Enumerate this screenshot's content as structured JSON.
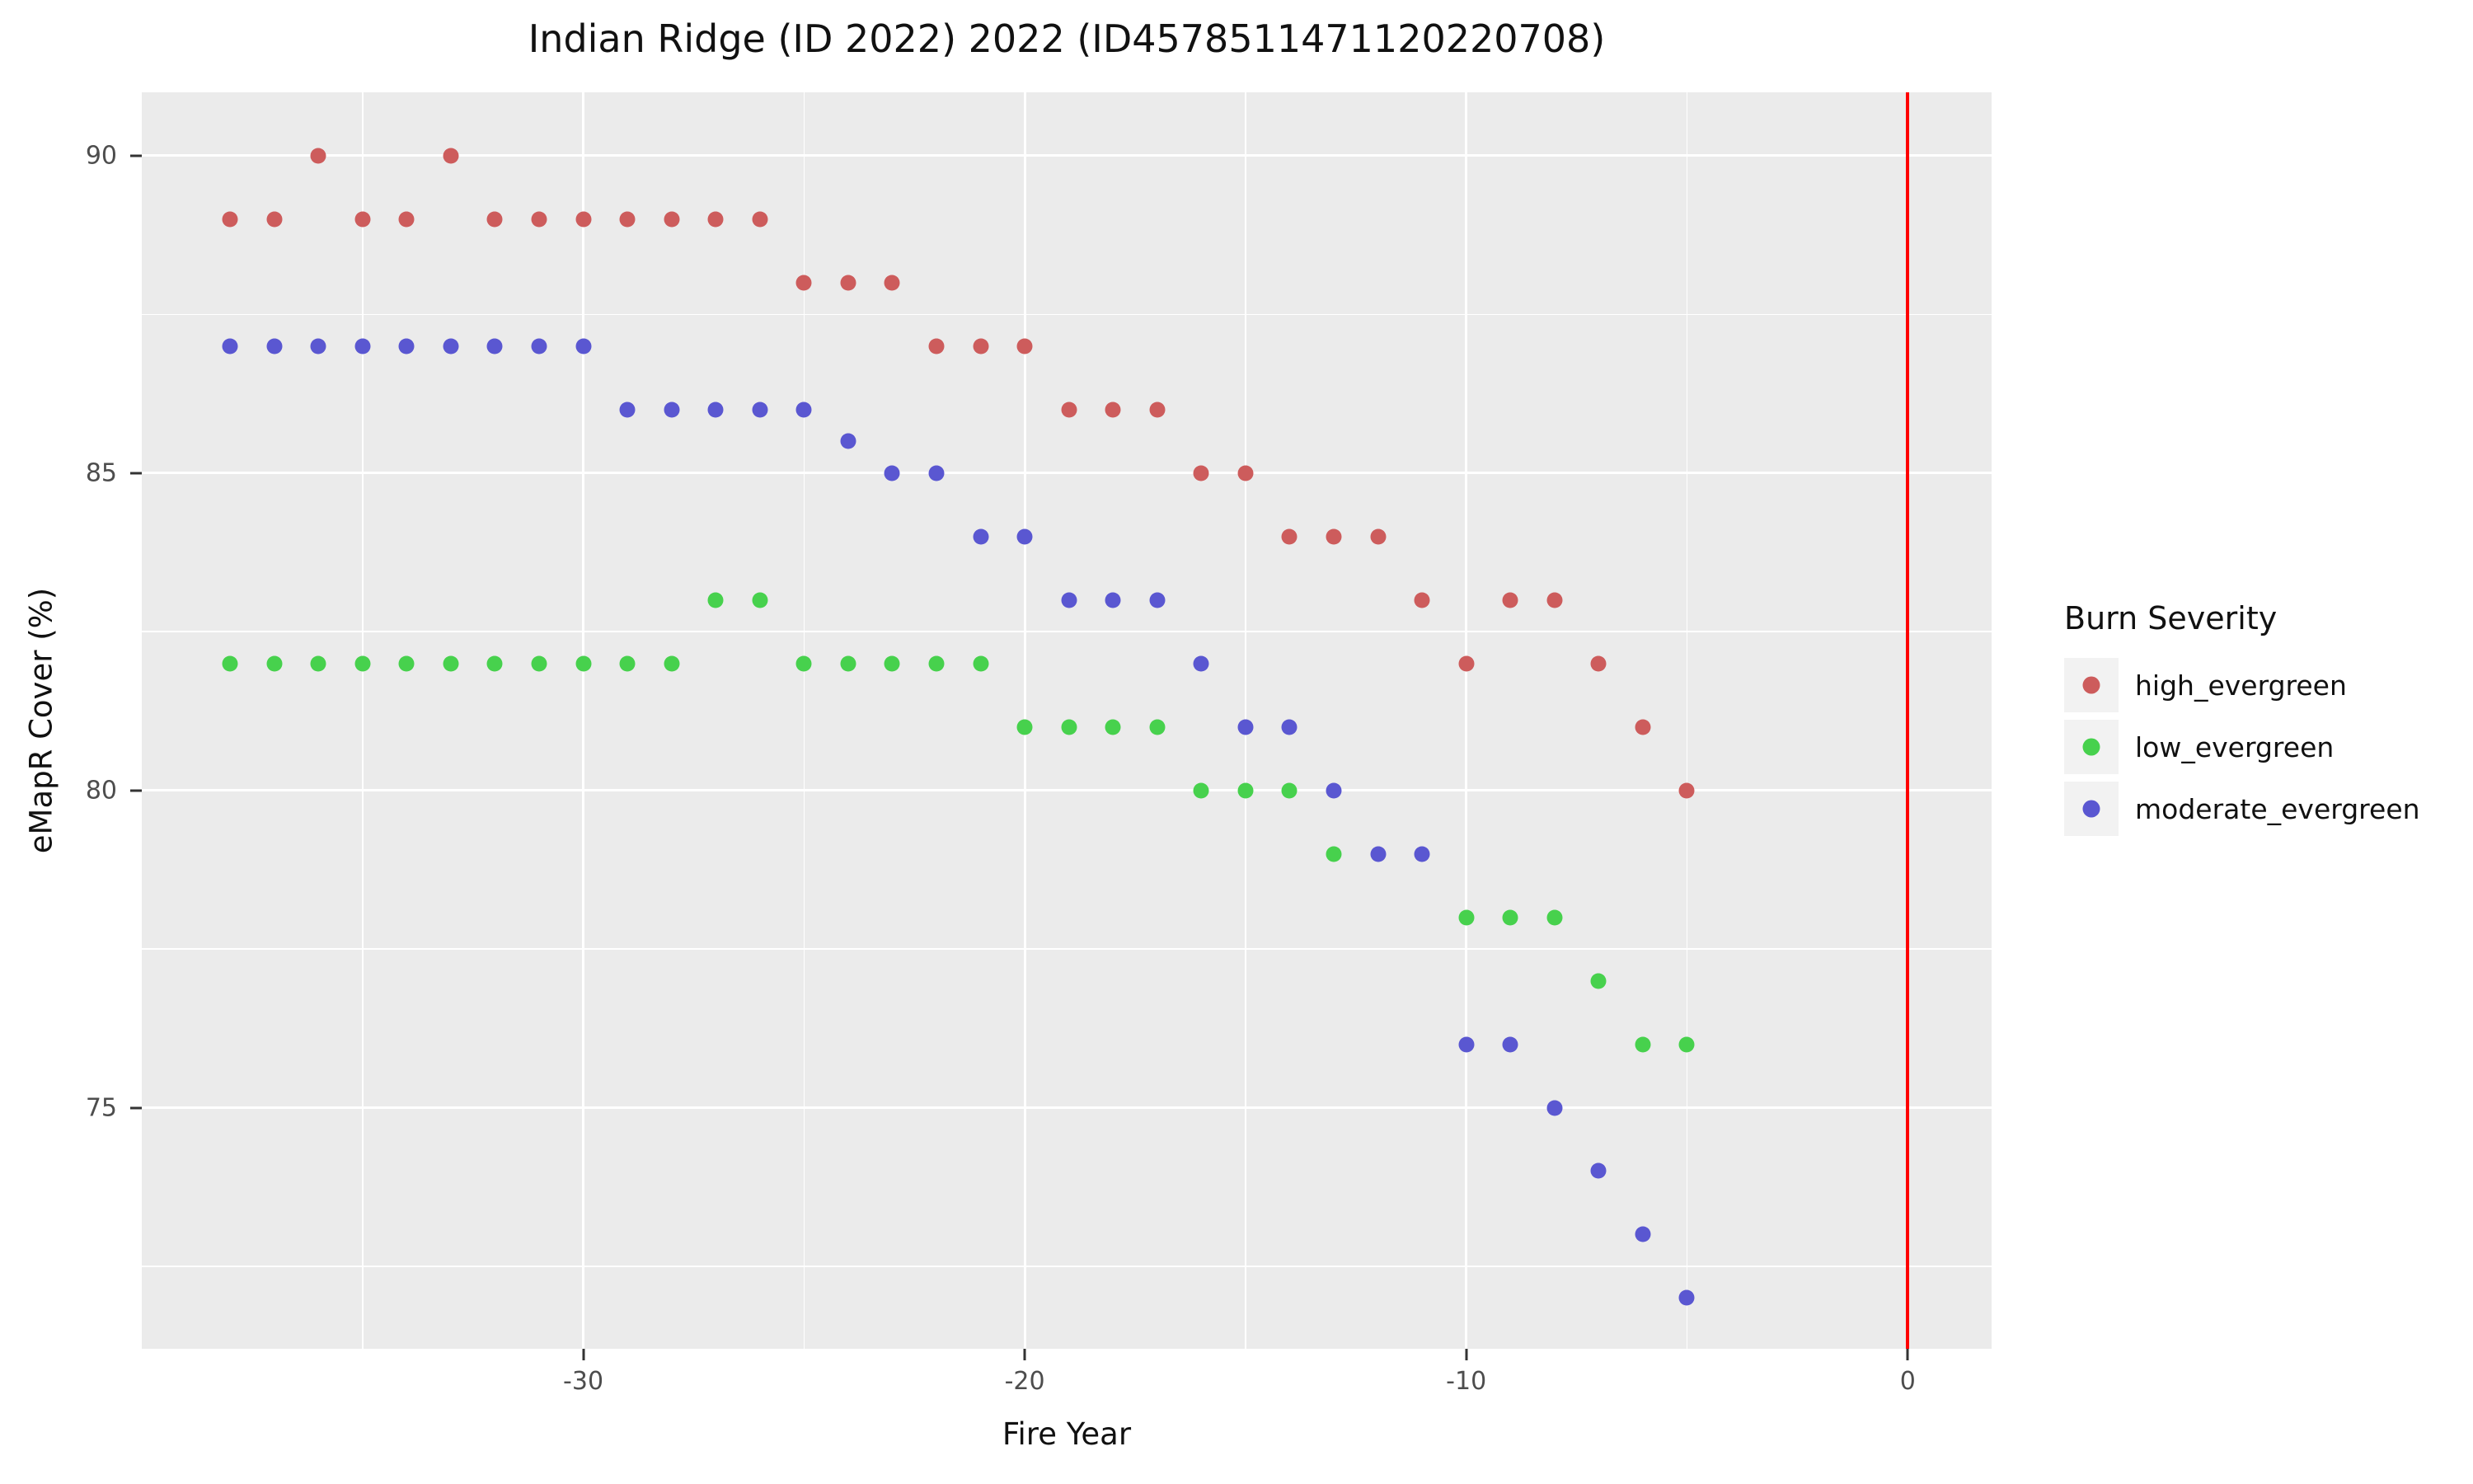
{
  "chart_data": {
    "type": "scatter",
    "title": "Indian Ridge (ID 2022) 2022 (ID4578511471120220708)",
    "xlabel": "Fire Year",
    "ylabel": "eMapR Cover (%)",
    "xlim": [
      -40,
      1.9
    ],
    "ylim": [
      71.2,
      91.0
    ],
    "grid": "on",
    "panel_bg": "#ebebeb",
    "grid_color": "#ffffff",
    "x_ticks": [
      {
        "value": -30,
        "label": "-30"
      },
      {
        "value": -20,
        "label": "-20"
      },
      {
        "value": -10,
        "label": "-10"
      },
      {
        "value": 0,
        "label": "0"
      }
    ],
    "y_ticks": [
      {
        "value": 90,
        "label": "90"
      },
      {
        "value": 85,
        "label": "85"
      },
      {
        "value": 80,
        "label": "80"
      },
      {
        "value": 75,
        "label": "75"
      }
    ],
    "x_minor_ticks": [
      -35,
      -25,
      -15,
      -5
    ],
    "y_minor_ticks": [
      87.5,
      82.5,
      77.5,
      72.5
    ],
    "vline": {
      "x": 0,
      "color": "#ff0000"
    },
    "legend": {
      "title": "Burn Severity",
      "position": "right"
    },
    "series": [
      {
        "name": "high_evergreen",
        "color": "#cd5c5c",
        "points": [
          [
            -38,
            89
          ],
          [
            -37,
            89
          ],
          [
            -36,
            90
          ],
          [
            -35,
            89
          ],
          [
            -34,
            89
          ],
          [
            -33,
            90
          ],
          [
            -32,
            89
          ],
          [
            -31,
            89
          ],
          [
            -30,
            89
          ],
          [
            -29,
            89
          ],
          [
            -28,
            89
          ],
          [
            -27,
            89
          ],
          [
            -26,
            89
          ],
          [
            -25,
            88
          ],
          [
            -24,
            88
          ],
          [
            -23,
            88
          ],
          [
            -22,
            87
          ],
          [
            -21,
            87
          ],
          [
            -20,
            87
          ],
          [
            -19,
            86
          ],
          [
            -18,
            86
          ],
          [
            -17,
            86
          ],
          [
            -16,
            85
          ],
          [
            -15,
            85
          ],
          [
            -14,
            84
          ],
          [
            -13,
            84
          ],
          [
            -12,
            84
          ],
          [
            -11,
            83
          ],
          [
            -10,
            82
          ],
          [
            -9,
            83
          ],
          [
            -8,
            83
          ],
          [
            -7,
            82
          ],
          [
            -6,
            81
          ],
          [
            -5,
            80
          ]
        ]
      },
      {
        "name": "low_evergreen",
        "color": "#47d14d",
        "points": [
          [
            -38,
            82
          ],
          [
            -37,
            82
          ],
          [
            -36,
            82
          ],
          [
            -35,
            82
          ],
          [
            -34,
            82
          ],
          [
            -33,
            82
          ],
          [
            -32,
            82
          ],
          [
            -31,
            82
          ],
          [
            -30,
            82
          ],
          [
            -29,
            82
          ],
          [
            -28,
            82
          ],
          [
            -27,
            83
          ],
          [
            -26,
            83
          ],
          [
            -25,
            82
          ],
          [
            -24,
            82
          ],
          [
            -23,
            82
          ],
          [
            -22,
            82
          ],
          [
            -21,
            82
          ],
          [
            -20,
            81
          ],
          [
            -19,
            81
          ],
          [
            -18,
            81
          ],
          [
            -17,
            81
          ],
          [
            -16,
            80
          ],
          [
            -15,
            80
          ],
          [
            -14,
            80
          ],
          [
            -13,
            79
          ],
          [
            -10,
            78
          ],
          [
            -9,
            78
          ],
          [
            -8,
            78
          ],
          [
            -7,
            77
          ],
          [
            -6,
            76
          ],
          [
            -5,
            76
          ]
        ]
      },
      {
        "name": "moderate_evergreen",
        "color": "#5a57d1",
        "points": [
          [
            -38,
            87
          ],
          [
            -37,
            87
          ],
          [
            -36,
            87
          ],
          [
            -35,
            87
          ],
          [
            -34,
            87
          ],
          [
            -33,
            87
          ],
          [
            -32,
            87
          ],
          [
            -31,
            87
          ],
          [
            -30,
            87
          ],
          [
            -29,
            86
          ],
          [
            -28,
            86
          ],
          [
            -27,
            86
          ],
          [
            -26,
            86
          ],
          [
            -25,
            86
          ],
          [
            -24,
            85.5
          ],
          [
            -23,
            85
          ],
          [
            -22,
            85
          ],
          [
            -21,
            84
          ],
          [
            -20,
            84
          ],
          [
            -19,
            83
          ],
          [
            -18,
            83
          ],
          [
            -17,
            83
          ],
          [
            -16,
            82
          ],
          [
            -15,
            81
          ],
          [
            -14,
            81
          ],
          [
            -13,
            80
          ],
          [
            -12,
            79
          ],
          [
            -11,
            79
          ],
          [
            -10,
            76
          ],
          [
            -9,
            76
          ],
          [
            -8,
            75
          ],
          [
            -7,
            74
          ],
          [
            -6,
            73
          ],
          [
            -5,
            72
          ]
        ]
      }
    ]
  }
}
